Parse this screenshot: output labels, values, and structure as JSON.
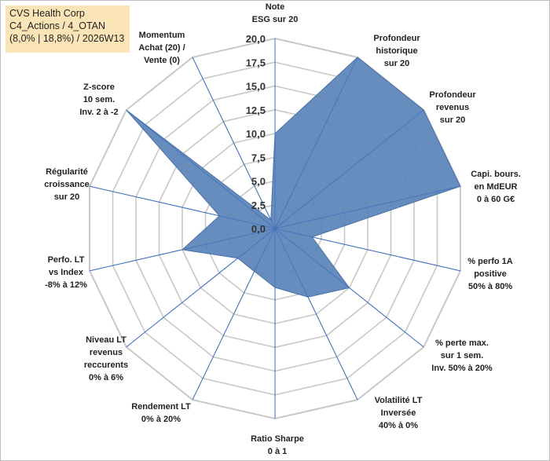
{
  "header": {
    "company": "CVS Health Corp",
    "category": "C4_Actions / 4_OTAN",
    "stats": "(8,0% | 18,8%) / 2026W13"
  },
  "colors": {
    "fill": "#5b84ba",
    "stroke": "#4a72a8",
    "grid": "#c8c8c8",
    "spoke": "#3f6fbd",
    "title_bg": "#fbe5b6"
  },
  "chart_data": {
    "type": "radar",
    "title": "CVS Health Corp",
    "rmin": 0,
    "rmax": 20,
    "ticks": [
      "0,0",
      "2,5",
      "5,0",
      "7,5",
      "10,0",
      "12,5",
      "15,0",
      "17,5",
      "20,0"
    ],
    "axes": [
      {
        "label": [
          "Note",
          "ESG sur 20"
        ],
        "value": 10
      },
      {
        "label": [
          "Profondeur",
          "historique",
          "sur 20"
        ],
        "value": 20
      },
      {
        "label": [
          "Profondeur",
          "revenus",
          "sur 20"
        ],
        "value": 20
      },
      {
        "label": [
          "Capi. bours.",
          "en MdEUR",
          "0 à 60 G€"
        ],
        "value": 20
      },
      {
        "label": [
          "% perfo 1A",
          "positive",
          "50% à 80%"
        ],
        "value": 4
      },
      {
        "label": [
          "% perte max.",
          "sur 1 sem.",
          "Inv. 50% à 20%"
        ],
        "value": 10
      },
      {
        "label": [
          "Volatilité LT",
          "Inversée",
          "40% à 0%"
        ],
        "value": 8
      },
      {
        "label": [
          "Ratio Sharpe",
          "0 à 1"
        ],
        "value": 6.2
      },
      {
        "label": [
          "Rendement LT",
          "0% à 20%"
        ],
        "value": 5
      },
      {
        "label": [
          "Niveau LT",
          "revenus",
          "reccurents",
          "0% à 6%"
        ],
        "value": 5
      },
      {
        "label": [
          "Perfo. LT",
          "vs Index",
          "-8% à 12%"
        ],
        "value": 10
      },
      {
        "label": [
          "Régularité",
          "croissance",
          "sur 20"
        ],
        "value": 6
      },
      {
        "label": [
          "Z-score",
          "10 sem.",
          "Inv. 2 à -2"
        ],
        "value": 20
      },
      {
        "label": [
          "Momentum",
          "Achat (20) /",
          "Vente (0)"
        ],
        "value": 1
      }
    ]
  }
}
